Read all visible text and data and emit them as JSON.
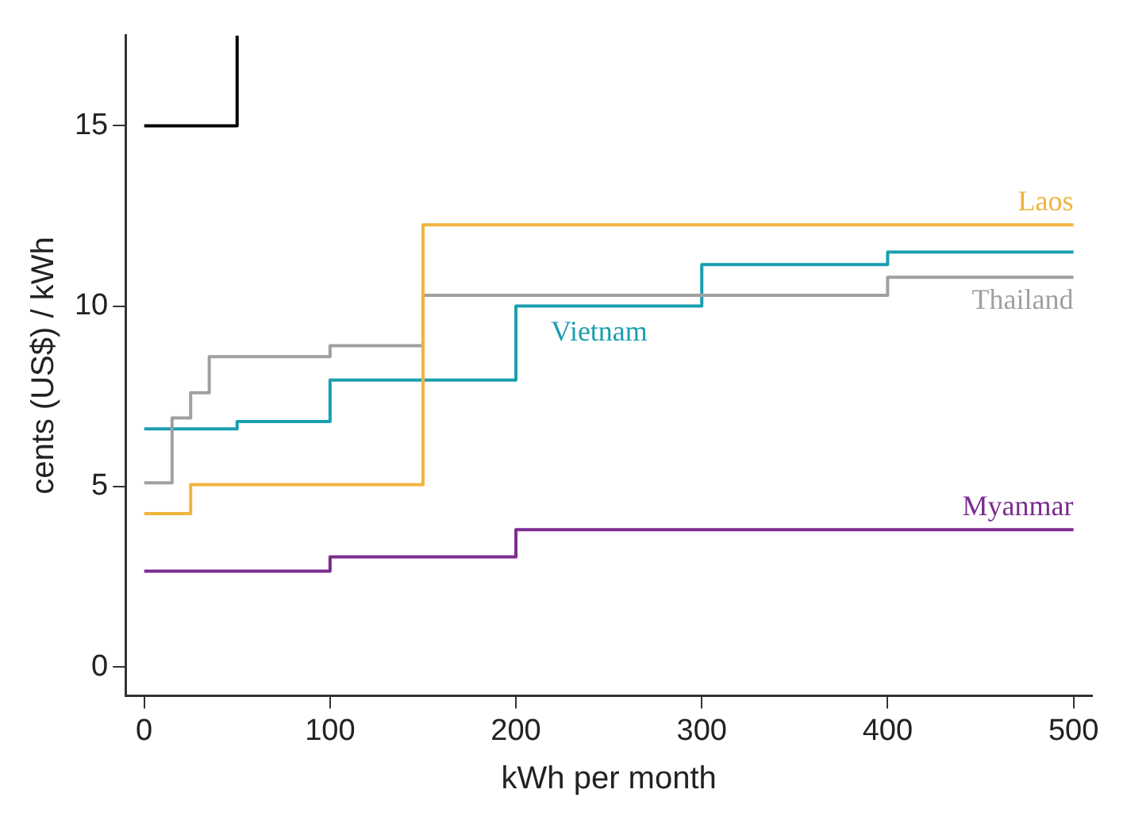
{
  "chart_data": {
    "type": "step",
    "xlabel": "kWh per month",
    "ylabel": "cents (US$) / kWh",
    "xlim": [
      -10,
      510
    ],
    "xticks": [
      0,
      100,
      200,
      300,
      400,
      500
    ],
    "ylim": [
      -0.8,
      17.5
    ],
    "yticks": [
      0,
      5,
      10,
      15
    ],
    "grid": false,
    "legend": false,
    "marker": "none",
    "series": [
      {
        "color": "#000000",
        "x": [
          0,
          50
        ],
        "values": [
          15,
          17.5
        ]
      },
      {
        "name": "Laos",
        "color": "#f0b43c",
        "x": [
          0,
          25,
          150,
          500
        ],
        "values": [
          4.25,
          5.05,
          12.25,
          12.25
        ]
      },
      {
        "name": "Thailand",
        "color": "#a0a0a0",
        "x": [
          0,
          15,
          25,
          35,
          100,
          150,
          400,
          500
        ],
        "values": [
          5.1,
          6.9,
          7.6,
          8.6,
          8.9,
          10.3,
          10.8,
          10.8
        ]
      },
      {
        "name": "Vietnam",
        "color": "#1a9fb0",
        "x": [
          0,
          50,
          100,
          200,
          300,
          400,
          500
        ],
        "values": [
          6.6,
          6.8,
          7.95,
          10,
          11.15,
          11.5,
          11.5
        ]
      },
      {
        "name": "Myanmar",
        "color": "#7b2d8e",
        "x": [
          0,
          100,
          200,
          500
        ],
        "values": [
          2.65,
          3.05,
          3.8,
          3.8
        ]
      }
    ]
  }
}
